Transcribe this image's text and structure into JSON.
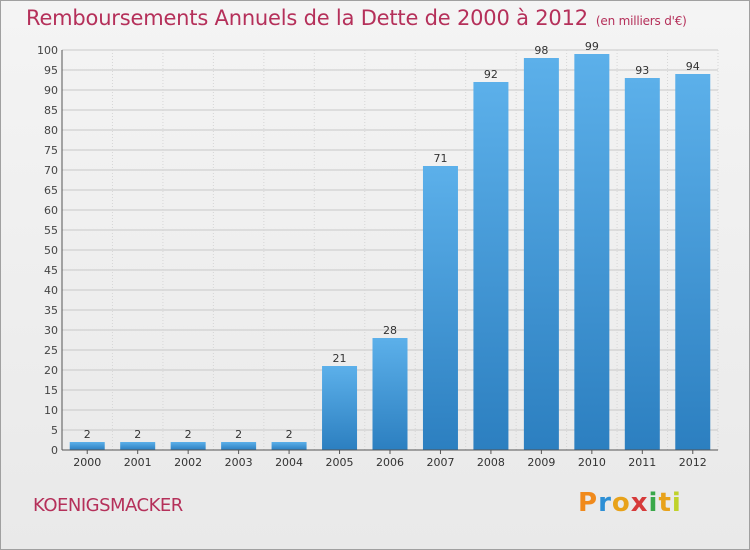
{
  "title": "Remboursements Annuels de la Dette de 2000 à 2012",
  "subtitle": "(en milliers d'€)",
  "commune": "KOENIGSMACKER",
  "logo": {
    "letters": [
      "P",
      "r",
      "o",
      "x",
      "i",
      "t",
      "i"
    ],
    "colors": [
      "#f08a1c",
      "#2d8fd5",
      "#e8a21a",
      "#d63a3a",
      "#3aa84a",
      "#e8a21a",
      "#c0d22a"
    ]
  },
  "colors": {
    "bar": "#3f97d8",
    "text": "#b5305a",
    "axis": "#555555"
  },
  "chart_data": {
    "type": "bar",
    "title": "Remboursements Annuels de la Dette de 2000 à 2012",
    "xlabel": "",
    "ylabel": "",
    "ylim": [
      0,
      100
    ],
    "ytick_step": 5,
    "grid": true,
    "categories": [
      "2000",
      "2001",
      "2002",
      "2003",
      "2004",
      "2005",
      "2006",
      "2007",
      "2008",
      "2009",
      "2010",
      "2011",
      "2012"
    ],
    "values": [
      2,
      2,
      2,
      2,
      2,
      21,
      28,
      71,
      92,
      98,
      99,
      93,
      94
    ]
  }
}
